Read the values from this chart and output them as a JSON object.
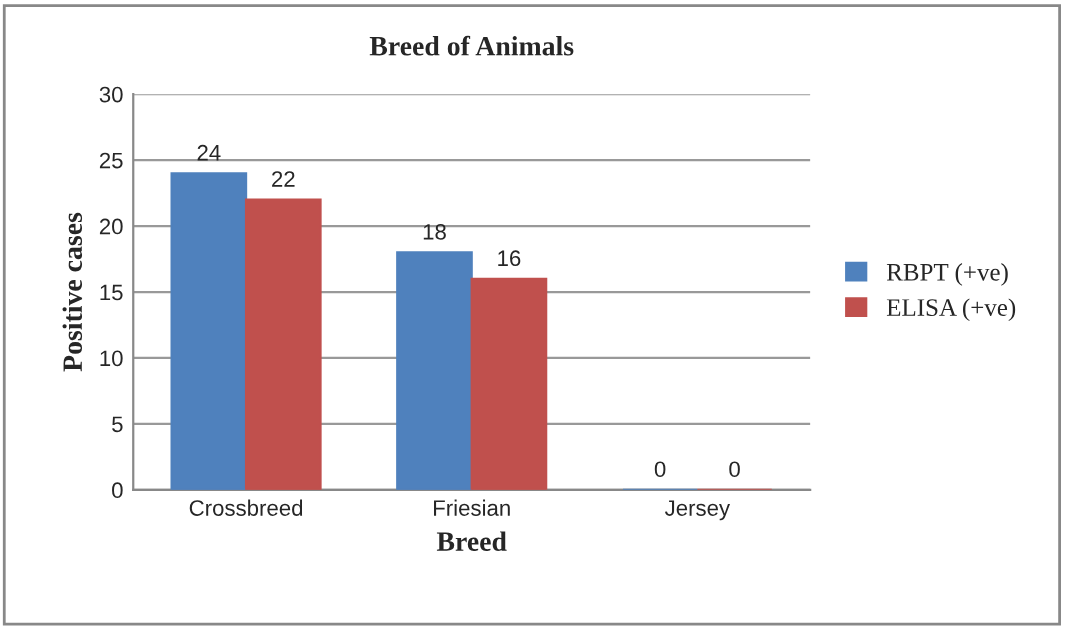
{
  "chart_data": {
    "type": "bar",
    "title": "Breed of Animals",
    "xlabel": "Breed",
    "ylabel": "Positive cases",
    "categories": [
      "Crossbreed",
      "Friesian",
      "Jersey"
    ],
    "series": [
      {
        "name": "RBPT (+ve)",
        "color": "#4f81bd",
        "values": [
          24,
          18,
          0
        ]
      },
      {
        "name": "ELISA (+ve)",
        "color": "#c0504d",
        "values": [
          22,
          16,
          0
        ]
      }
    ],
    "ylim": [
      0,
      30
    ],
    "yticks": [
      0,
      5,
      10,
      15,
      20,
      25,
      30
    ],
    "grid": "y",
    "legend": "right",
    "data_labels": true
  }
}
